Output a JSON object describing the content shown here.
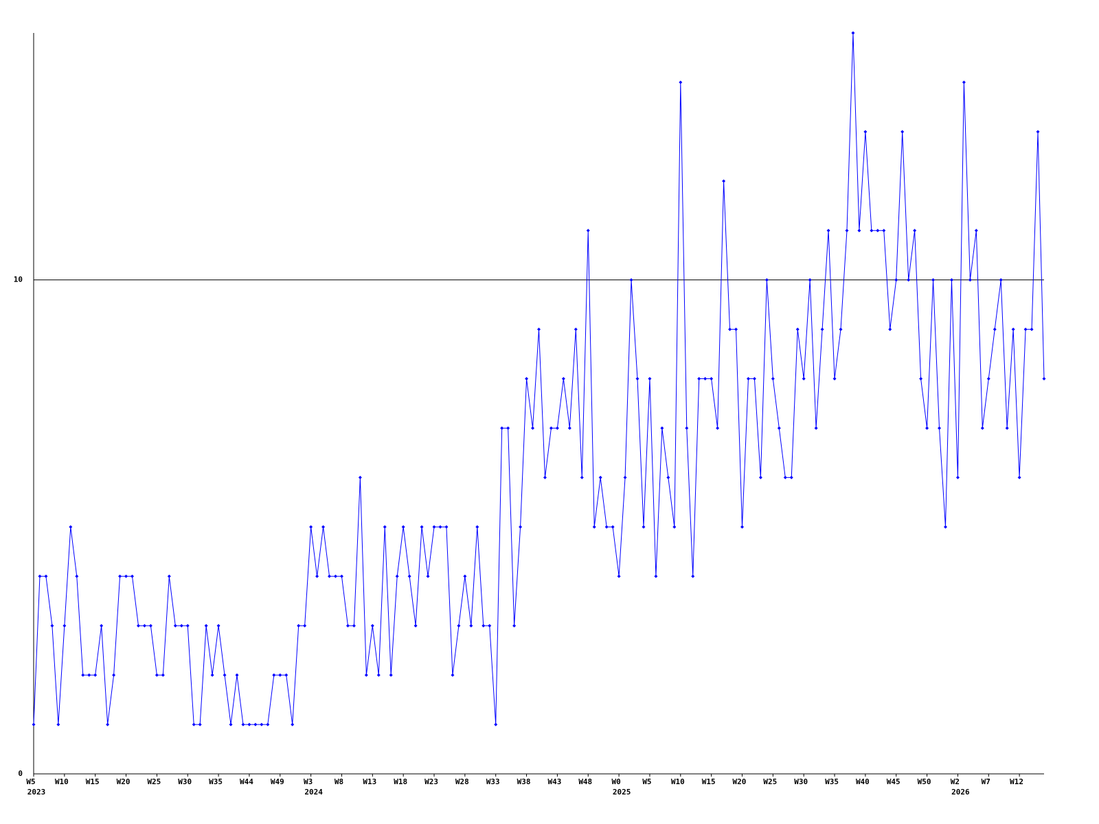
{
  "chart_data": {
    "type": "line",
    "categories": [
      "W5",
      null,
      null,
      null,
      null,
      "W10",
      null,
      null,
      null,
      null,
      "W15",
      null,
      null,
      null,
      null,
      "W20",
      null,
      null,
      null,
      null,
      "W25",
      null,
      null,
      null,
      null,
      "W30",
      null,
      null,
      null,
      null,
      "W35",
      null,
      null,
      null,
      null,
      "W44",
      null,
      null,
      null,
      null,
      "W49",
      null,
      null,
      null,
      null,
      "W3",
      null,
      null,
      null,
      null,
      "W8",
      null,
      null,
      null,
      null,
      "W13",
      null,
      null,
      null,
      null,
      "W18",
      null,
      null,
      null,
      null,
      "W23",
      null,
      null,
      null,
      null,
      "W28",
      null,
      null,
      null,
      null,
      "W33",
      null,
      null,
      null,
      null,
      "W38",
      null,
      null,
      null,
      null,
      "W43",
      null,
      null,
      null,
      null,
      "W48",
      null,
      null,
      null,
      null,
      "W0",
      null,
      null,
      null,
      null,
      "W5",
      null,
      null,
      null,
      null,
      "W10",
      null,
      null,
      null,
      null,
      "W15",
      null,
      null,
      null,
      null,
      "W20",
      null,
      null,
      null,
      null,
      "W25",
      null,
      null,
      null,
      null,
      "W30",
      null,
      null,
      null,
      null,
      "W35",
      null,
      null,
      null,
      null,
      "W40",
      null,
      null,
      null,
      null,
      "W45",
      null,
      null,
      null,
      null,
      "W50",
      null,
      null,
      null,
      null,
      "W2",
      null,
      null,
      null,
      null,
      "W7",
      null,
      null,
      null,
      null,
      "W12",
      null,
      null,
      null,
      null
    ],
    "year_categories": [
      "2023",
      null,
      null,
      null,
      null,
      null,
      null,
      null,
      null,
      null,
      null,
      null,
      null,
      null,
      null,
      null,
      null,
      null,
      null,
      null,
      null,
      null,
      null,
      null,
      null,
      null,
      null,
      null,
      null,
      null,
      null,
      null,
      null,
      null,
      null,
      null,
      null,
      null,
      null,
      null,
      null,
      null,
      null,
      null,
      null,
      "2024",
      null,
      null,
      null,
      null,
      null,
      null,
      null,
      null,
      null,
      null,
      null,
      null,
      null,
      null,
      null,
      null,
      null,
      null,
      null,
      null,
      null,
      null,
      null,
      null,
      null,
      null,
      null,
      null,
      null,
      null,
      null,
      null,
      null,
      null,
      null,
      null,
      null,
      null,
      null,
      null,
      null,
      null,
      null,
      null,
      null,
      null,
      null,
      null,
      null,
      "2025",
      null,
      null,
      null,
      null,
      null,
      null,
      null,
      null,
      null,
      null,
      null,
      null,
      null,
      null,
      null,
      null,
      null,
      null,
      null,
      null,
      null,
      null,
      null,
      null,
      null,
      null,
      null,
      null,
      null,
      null,
      null,
      null,
      null,
      null,
      null,
      null,
      null,
      null,
      null,
      null,
      null,
      null,
      null,
      null,
      null,
      null,
      null,
      null,
      null,
      null,
      null,
      null,
      null,
      null,
      "2026",
      null,
      null,
      null,
      null,
      null,
      null,
      null,
      null,
      null,
      null,
      null,
      null,
      null,
      null
    ],
    "values": [
      1,
      4,
      4,
      3,
      1,
      3,
      5,
      4,
      2,
      2,
      2,
      3,
      1,
      2,
      4,
      4,
      4,
      3,
      3,
      3,
      2,
      2,
      4,
      3,
      3,
      3,
      1,
      1,
      3,
      2,
      3,
      2,
      1,
      2,
      1,
      1,
      1,
      1,
      1,
      2,
      2,
      2,
      1,
      3,
      3,
      5,
      4,
      5,
      4,
      4,
      4,
      3,
      3,
      6,
      2,
      3,
      2,
      5,
      2,
      4,
      5,
      4,
      3,
      5,
      4,
      5,
      5,
      5,
      2,
      3,
      4,
      3,
      5,
      3,
      3,
      1,
      7,
      7,
      3,
      5,
      8,
      7,
      9,
      6,
      7,
      7,
      8,
      7,
      9,
      6,
      11,
      5,
      6,
      5,
      5,
      4,
      6,
      10,
      8,
      5,
      8,
      4,
      7,
      6,
      5,
      14,
      7,
      4,
      8,
      8,
      8,
      7,
      12,
      9,
      9,
      5,
      8,
      8,
      6,
      10,
      8,
      7,
      6,
      6,
      9,
      8,
      10,
      7,
      9,
      11,
      8,
      9,
      11,
      15,
      11,
      13,
      11,
      11,
      11,
      9,
      10,
      13,
      10,
      11,
      8,
      7,
      10,
      7,
      5,
      10,
      6,
      14,
      10,
      11,
      7,
      8,
      9,
      10,
      7,
      9,
      6,
      9,
      9,
      13,
      8
    ],
    "color": "#0000ff",
    "ylim": [
      0,
      15
    ],
    "yticks": [
      0,
      10
    ],
    "grid": true
  }
}
